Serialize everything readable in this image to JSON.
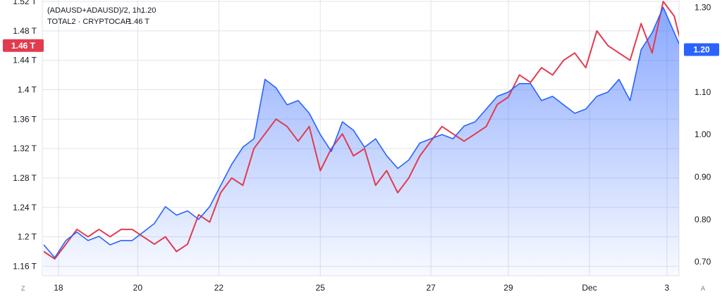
{
  "chart_data": {
    "type": "area",
    "legend": {
      "position": "top-left",
      "entries": [
        {
          "label": "(ADAUSD+ADAUSD)/2, 1h,",
          "value": "1.20",
          "color": "#2962ff"
        },
        {
          "label": "TOTAL2 · CRYPTOCAP",
          "value": "1.46 T",
          "color": "#e13b4f"
        }
      ]
    },
    "x_tick_labels": [
      "18",
      "20",
      "22",
      "25",
      "27",
      "29",
      "Dec",
      "3"
    ],
    "left_axis": {
      "tick_labels": [
        "1.52 T",
        "1.48 T",
        "1.44 T",
        "1.4 T",
        "1.36 T",
        "1.32 T",
        "1.28 T",
        "1.24 T",
        "1.2 T",
        "1.16 T"
      ],
      "tick_values": [
        1.52,
        1.48,
        1.44,
        1.4,
        1.36,
        1.32,
        1.28,
        1.24,
        1.2,
        1.16
      ],
      "ylim": [
        1.147,
        1.522
      ],
      "last_value_label": "1.46 T",
      "last_value": 1.46
    },
    "right_axis": {
      "tick_labels": [
        "1.30",
        "1.20",
        "1.10",
        "1.00",
        "0.90",
        "0.80",
        "0.70"
      ],
      "tick_values": [
        1.3,
        1.2,
        1.1,
        1.0,
        0.9,
        0.8,
        0.7
      ],
      "ylim": [
        0.667,
        1.317
      ],
      "last_value_label": "1.20",
      "last_value": 1.2
    },
    "grid": true,
    "corner_labels": {
      "left": "Z",
      "right": "A"
    },
    "colors": {
      "ada": "#2962ff",
      "total2": "#e13b4f",
      "fill": "#2962ff"
    },
    "series": [
      {
        "name": "(ADAUSD+ADAUSD)/2",
        "axis": "right",
        "x": [
          0,
          0.3,
          0.6,
          0.9,
          1.2,
          1.5,
          1.8,
          2.1,
          2.4,
          2.7,
          3.0,
          3.3,
          3.6,
          3.9,
          4.2,
          4.5,
          4.8,
          5.1,
          5.4,
          5.7,
          6.0,
          6.3,
          6.6,
          6.9,
          7.2,
          7.5,
          7.8,
          8.1,
          8.4,
          8.7,
          9.0,
          9.3,
          9.6,
          9.9,
          10.2,
          10.5,
          10.8,
          11.1,
          11.4,
          11.7,
          12.0,
          12.3,
          12.6,
          12.9,
          13.2,
          13.5,
          13.8,
          14.1,
          14.4,
          14.7,
          15.0,
          15.3,
          15.6,
          15.9,
          16.2,
          16.5,
          16.8,
          17.1,
          17.3
        ],
        "values": [
          0.74,
          0.71,
          0.75,
          0.77,
          0.75,
          0.76,
          0.74,
          0.75,
          0.75,
          0.77,
          0.79,
          0.83,
          0.81,
          0.82,
          0.8,
          0.83,
          0.88,
          0.93,
          0.97,
          0.99,
          1.13,
          1.11,
          1.07,
          1.08,
          1.05,
          1.0,
          0.96,
          1.03,
          1.01,
          0.97,
          0.99,
          0.95,
          0.92,
          0.94,
          0.98,
          0.99,
          1.0,
          0.99,
          1.02,
          1.03,
          1.06,
          1.09,
          1.1,
          1.12,
          1.12,
          1.08,
          1.09,
          1.07,
          1.05,
          1.06,
          1.09,
          1.1,
          1.13,
          1.08,
          1.2,
          1.24,
          1.3,
          1.24,
          1.2
        ]
      },
      {
        "name": "TOTAL2 · CRYPTOCAP",
        "axis": "left",
        "x": [
          0,
          0.3,
          0.6,
          0.9,
          1.2,
          1.5,
          1.8,
          2.1,
          2.4,
          2.7,
          3.0,
          3.3,
          3.6,
          3.9,
          4.2,
          4.5,
          4.8,
          5.1,
          5.4,
          5.7,
          6.0,
          6.3,
          6.6,
          6.9,
          7.2,
          7.5,
          7.8,
          8.1,
          8.4,
          8.7,
          9.0,
          9.3,
          9.6,
          9.9,
          10.2,
          10.5,
          10.8,
          11.1,
          11.4,
          11.7,
          12.0,
          12.3,
          12.6,
          12.9,
          13.2,
          13.5,
          13.8,
          14.1,
          14.4,
          14.7,
          15.0,
          15.3,
          15.6,
          15.9,
          16.2,
          16.5,
          16.8,
          17.1,
          17.3
        ],
        "values": [
          1.18,
          1.17,
          1.19,
          1.21,
          1.2,
          1.21,
          1.2,
          1.21,
          1.21,
          1.2,
          1.19,
          1.2,
          1.18,
          1.19,
          1.23,
          1.22,
          1.26,
          1.28,
          1.27,
          1.32,
          1.34,
          1.36,
          1.35,
          1.33,
          1.35,
          1.29,
          1.32,
          1.34,
          1.31,
          1.32,
          1.27,
          1.29,
          1.26,
          1.28,
          1.31,
          1.33,
          1.35,
          1.34,
          1.33,
          1.34,
          1.35,
          1.38,
          1.39,
          1.42,
          1.41,
          1.43,
          1.42,
          1.44,
          1.45,
          1.43,
          1.48,
          1.46,
          1.45,
          1.44,
          1.49,
          1.45,
          1.52,
          1.5,
          1.46
        ]
      }
    ]
  }
}
